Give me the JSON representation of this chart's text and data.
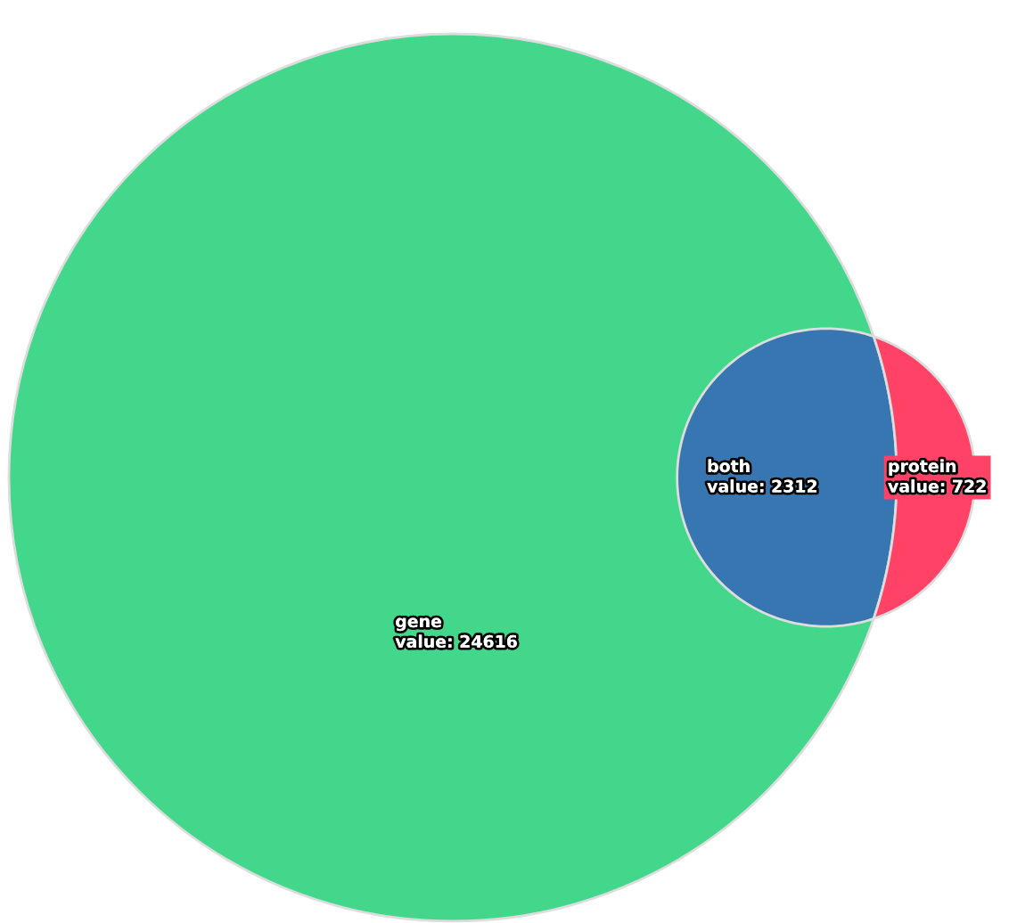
{
  "chart_data": {
    "type": "other",
    "categories": [
      "gene",
      "both",
      "protein"
    ],
    "values": [
      24616,
      2312,
      722
    ],
    "value_labels": [
      "value: 24616",
      "value: 2312",
      "value: 722"
    ],
    "colors": [
      "#42d78a",
      "#3776b0",
      "#ff4266"
    ]
  }
}
